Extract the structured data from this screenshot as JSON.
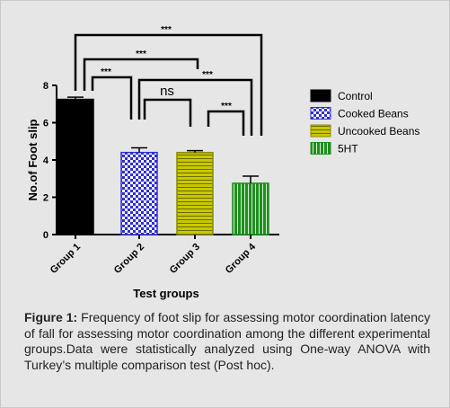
{
  "caption": {
    "label": "Figure 1:",
    "text": " Frequency of foot slip for assessing motor coordination latency of fall for assessing motor coordination among the different experimental groups.Data were statistically analyzed using One-way ANOVA  with Turkey’s multiple comparison test (Post hoc)."
  },
  "chart_data": {
    "type": "bar",
    "title": "",
    "xlabel": "Test groups",
    "ylabel": "No.of Foot slip",
    "ylim": [
      0,
      8
    ],
    "yticks": [
      0,
      2,
      4,
      6,
      8
    ],
    "categories": [
      "Group 1",
      "Group 2",
      "Group 3",
      "Group 4"
    ],
    "values": [
      7.25,
      4.4,
      4.4,
      2.75
    ],
    "errors": [
      0.12,
      0.25,
      0.1,
      0.38
    ],
    "legend": {
      "placement": "right",
      "entries": [
        {
          "name": "Control",
          "pattern": "solid",
          "color": "#000000"
        },
        {
          "name": "Cooked Beans",
          "pattern": "checker",
          "color": "#2f2fd6"
        },
        {
          "name": "Uncooked Beans",
          "pattern": "hstripe",
          "color": "#c8c800"
        },
        {
          "name": "5HT",
          "pattern": "vstripe",
          "color": "#1f8f1f"
        }
      ]
    },
    "significance": [
      {
        "from": 0,
        "to": 3,
        "label": "***"
      },
      {
        "from": 0,
        "to": 2,
        "label": "***"
      },
      {
        "from": 0,
        "to": 1,
        "label": "***"
      },
      {
        "from": 1,
        "to": 3,
        "label": "***"
      },
      {
        "from": 1,
        "to": 2,
        "label": "ns"
      },
      {
        "from": 2,
        "to": 3,
        "label": "***"
      }
    ]
  }
}
